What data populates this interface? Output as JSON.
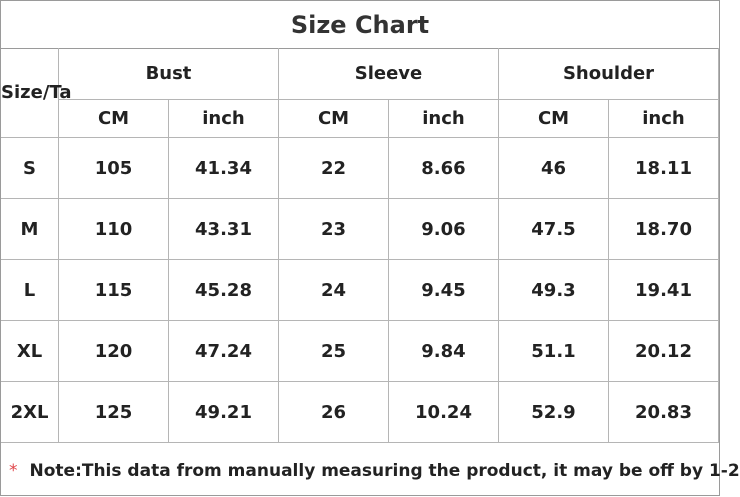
{
  "title": "Size Chart",
  "table": {
    "size_header": "Size/Ta",
    "groups": [
      "Bust",
      "Sleeve",
      "Shoulder"
    ],
    "units": [
      "CM",
      "inch",
      "CM",
      "inch",
      "CM",
      "inch"
    ],
    "rows": [
      [
        "S",
        "105",
        "41.34",
        "22",
        "8.66",
        "46",
        "18.11"
      ],
      [
        "M",
        "110",
        "43.31",
        "23",
        "9.06",
        "47.5",
        "18.70"
      ],
      [
        "L",
        "115",
        "45.28",
        "24",
        "9.45",
        "49.3",
        "19.41"
      ],
      [
        "XL",
        "120",
        "47.24",
        "25",
        "9.84",
        "51.1",
        "20.12"
      ],
      [
        "2XL",
        "125",
        "49.21",
        "26",
        "10.24",
        "52.9",
        "20.83"
      ]
    ]
  },
  "note": {
    "marker": "*",
    "text": "Note:This data from manually measuring the product, it may be off by 1-2"
  }
}
